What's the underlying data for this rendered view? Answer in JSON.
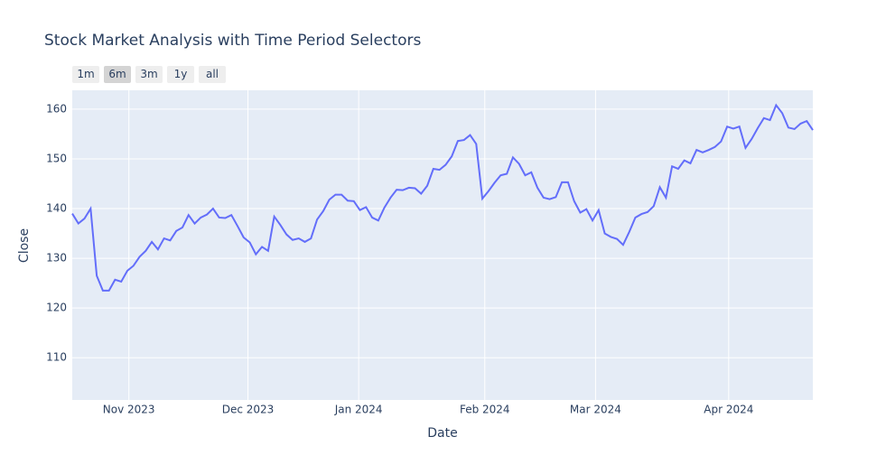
{
  "chart_data": {
    "type": "line",
    "title": "Stock Market Analysis with Time Period Selectors",
    "x_label": "Date",
    "y_label": "Close",
    "buttons": [
      "1m",
      "6m",
      "3m",
      "1y",
      "all"
    ],
    "active_button": 1,
    "categories": [
      null,
      null,
      null,
      null,
      null,
      null,
      null,
      null,
      null,
      null,
      null,
      null,
      null,
      null,
      null,
      null,
      null,
      null,
      null,
      null,
      null,
      null,
      null,
      null,
      null,
      null,
      null,
      null,
      null,
      null,
      null,
      null,
      null,
      null,
      null,
      null,
      null,
      null,
      null,
      null,
      null,
      null,
      null,
      null,
      null,
      null,
      null,
      null,
      null,
      null,
      null,
      null,
      null,
      null,
      null,
      null,
      null,
      null,
      null,
      null,
      null,
      null,
      null,
      null,
      null,
      null,
      null,
      null,
      null,
      null,
      null,
      null,
      null,
      null,
      null,
      null,
      null,
      null,
      null,
      null,
      null,
      null,
      null,
      null,
      null,
      null,
      null,
      null,
      null,
      null,
      null,
      null,
      null,
      null,
      null,
      null,
      null,
      null,
      null,
      null,
      null,
      null,
      null,
      null,
      null,
      null,
      null,
      null,
      null,
      null,
      null,
      null,
      null,
      null,
      null,
      null,
      null,
      null,
      null,
      null,
      null,
      null
    ],
    "series": [
      {
        "name": "Close",
        "color": "#636efa",
        "values": [
          139,
          137,
          138,
          140,
          126.5,
          123.5,
          123.5,
          125.7,
          125.3,
          127.5,
          128.5,
          130.3,
          131.5,
          133.3,
          131.8,
          134,
          133.6,
          135.5,
          136.2,
          138.7,
          137,
          138.2,
          138.8,
          140,
          138.2,
          138.1,
          138.7,
          136.5,
          134.2,
          133.2,
          130.8,
          132.3,
          131.5,
          138.4,
          136.7,
          134.8,
          133.7,
          134,
          133.3,
          134,
          137.8,
          139.5,
          141.8,
          142.8,
          142.8,
          141.6,
          141.5,
          139.7,
          140.3,
          138.2,
          137.6,
          140.2,
          142.2,
          143.8,
          143.7,
          144.2,
          144.1,
          143,
          144.6,
          148,
          147.8,
          148.8,
          150.5,
          153.6,
          153.8,
          154.8,
          153,
          142,
          143.5,
          145.2,
          146.7,
          147,
          150.3,
          149,
          146.7,
          147.3,
          144.2,
          142.2,
          141.9,
          142.3,
          145.3,
          145.3,
          141.5,
          139.2,
          139.9,
          137.6,
          139.7,
          135,
          134.3,
          133.9,
          132.7,
          135.3,
          138.2,
          138.9,
          139.3,
          140.5,
          144.3,
          142.2,
          148.5,
          148,
          149.7,
          149.1,
          151.8,
          151.3,
          151.8,
          152.4,
          153.5,
          156.5,
          156.1,
          156.5,
          152.2,
          154,
          156.2,
          158.2,
          157.8,
          160.8,
          159.2,
          156.3,
          156,
          157.1,
          157.6,
          155.8
        ]
      }
    ],
    "xlim": [
      0,
      121
    ],
    "xticks": [
      {
        "value": 9.25,
        "label": "Nov 2023"
      },
      {
        "value": 28.7,
        "label": "Dec 2023"
      },
      {
        "value": 46.8,
        "label": "Jan 2024"
      },
      {
        "value": 67.4,
        "label": "Feb 2024"
      },
      {
        "value": 85.5,
        "label": "Mar 2024"
      },
      {
        "value": 107.25,
        "label": "Apr 2024"
      }
    ],
    "ylim": [
      101.5,
      163.8
    ],
    "yticks": [
      110,
      120,
      130,
      140,
      150,
      160
    ],
    "grid": true,
    "plot_bgcolor": "#e5ecf6"
  }
}
